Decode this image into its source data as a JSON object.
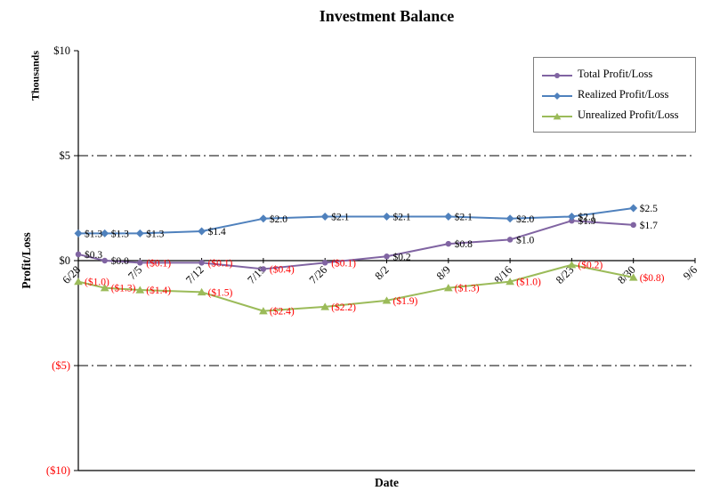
{
  "title": "Investment Balance",
  "axes": {
    "y_title": "Profit/Loss",
    "y_units": "Thousands",
    "x_title": "Date",
    "y_ticks": [
      {
        "label": "$10",
        "value": 10,
        "color": "#000000"
      },
      {
        "label": "$5",
        "value": 5,
        "color": "#000000"
      },
      {
        "label": "$0",
        "value": 0,
        "color": "#000000"
      },
      {
        "label": "($5)",
        "value": -5,
        "color": "#FF0000"
      },
      {
        "label": "($10)",
        "value": -10,
        "color": "#FF0000"
      }
    ],
    "x_ticks": [
      "6/28",
      "7/5",
      "7/12",
      "7/19",
      "7/26",
      "8/2",
      "8/9",
      "8/16",
      "8/23",
      "8/30",
      "9/6"
    ]
  },
  "chart_data": {
    "type": "line",
    "title": "Investment Balance",
    "xlabel": "Date",
    "ylabel": "Profit/Loss (Thousands)",
    "ylim": [
      -10,
      10
    ],
    "x_tick_labels": [
      "6/28",
      "7/5",
      "7/12",
      "7/19",
      "7/26",
      "8/2",
      "8/9",
      "8/16",
      "8/23",
      "8/30",
      "9/6"
    ],
    "x_tick_days": [
      0,
      7,
      14,
      21,
      28,
      35,
      42,
      49,
      56,
      63,
      70
    ],
    "x_max_day": 70,
    "point_dates": [
      "6/28",
      "7/1",
      "7/5",
      "7/12",
      "7/19",
      "7/26",
      "8/2",
      "8/9",
      "8/16",
      "8/23",
      "8/30"
    ],
    "point_days": [
      0,
      3,
      7,
      14,
      21,
      28,
      35,
      42,
      49,
      56,
      63
    ],
    "gridlines": [
      {
        "value": 5,
        "style": "dashdot"
      },
      {
        "value": -5,
        "style": "dashdot"
      },
      {
        "value": 0,
        "style": "solid"
      },
      {
        "value": -10,
        "style": "solid"
      }
    ],
    "negative_label_color": "#FF0000",
    "positive_label_color": "#000000",
    "legend_position": "top-right",
    "series": [
      {
        "name": "Total Profit/Loss",
        "color": "#8064A2",
        "marker": "circle",
        "values": [
          0.3,
          0.0,
          -0.1,
          -0.1,
          -0.4,
          -0.1,
          0.2,
          0.8,
          1.0,
          1.9,
          1.7
        ],
        "labels": [
          "$0.3",
          "$0.0",
          "($0.1)",
          "($0.1)",
          "($0.4)",
          "($0.1)",
          "$0.2",
          "$0.8",
          "$1.0",
          "$1.9",
          "$1.7"
        ]
      },
      {
        "name": "Realized Profit/Loss",
        "color": "#4F81BD",
        "marker": "diamond",
        "values": [
          1.3,
          1.3,
          1.3,
          1.4,
          2.0,
          2.1,
          2.1,
          2.1,
          2.0,
          2.1,
          2.5
        ],
        "labels": [
          "$1.3",
          "$1.3",
          "$1.3",
          "$1.4",
          "$2.0",
          "$2.1",
          "$2.1",
          "$2.1",
          "$2.0",
          "$2.1",
          "$2.5"
        ]
      },
      {
        "name": "Unrealized Profit/Loss",
        "color": "#9BBB59",
        "marker": "triangle",
        "values": [
          -1.0,
          -1.3,
          -1.4,
          -1.5,
          -2.4,
          -2.2,
          -1.9,
          -1.3,
          -1.0,
          -0.2,
          -0.8
        ],
        "labels": [
          "($1.0)",
          "($1.3)",
          "($1.4)",
          "($1.5)",
          "($2.4)",
          "($2.2)",
          "($1.9)",
          "($1.3)",
          "($1.0)",
          "($0.2)",
          "($0.8)"
        ]
      }
    ]
  }
}
